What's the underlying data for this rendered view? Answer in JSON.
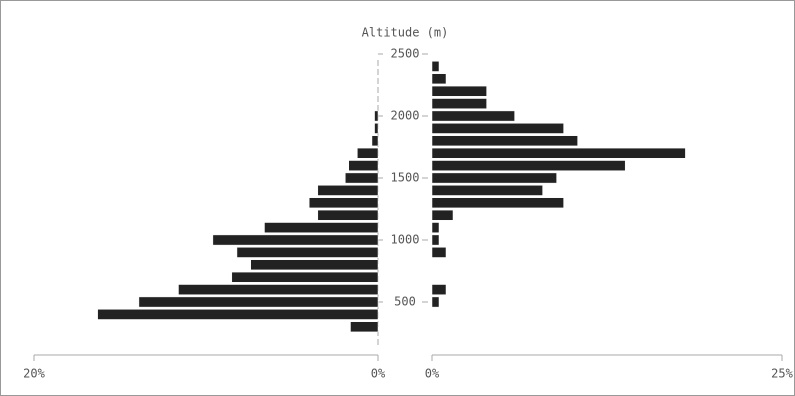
{
  "chart_data": {
    "type": "back-to-back-bar",
    "title": "Altitude (m)",
    "x": [
      300,
      400,
      500,
      600,
      700,
      800,
      900,
      1000,
      1100,
      1200,
      1300,
      1400,
      1500,
      1600,
      1700,
      1800,
      1900,
      2000,
      2100,
      2200,
      2300,
      2400
    ],
    "series": [
      {
        "color": "#222222",
        "side": "left",
        "values": [
          1.6,
          16.3,
          13.9,
          11.6,
          8.5,
          7.4,
          8.2,
          9.6,
          6.6,
          3.5,
          4.0,
          3.5,
          1.9,
          1.7,
          1.2,
          0.35,
          0.2,
          0.2,
          0,
          0,
          0,
          0
        ]
      },
      {
        "color": "#222222",
        "side": "right",
        "values": [
          0,
          0,
          0.5,
          1.0,
          0,
          0,
          1.0,
          0.5,
          0.5,
          1.5,
          9.4,
          7.9,
          8.9,
          13.8,
          18.1,
          10.4,
          9.4,
          5.9,
          3.9,
          3.9,
          1.0,
          0.5
        ]
      }
    ],
    "ylim": [
      150,
      2500
    ],
    "yticks": [
      500,
      1000,
      1500,
      2000,
      2500
    ],
    "xlim_left": [
      20,
      0
    ],
    "xticks_left": [
      {
        "value": 20,
        "label": "20%"
      },
      {
        "value": 0,
        "label": "0%"
      }
    ],
    "xlim_right": [
      0,
      25
    ],
    "xticks_right": [
      {
        "value": 0,
        "label": "0%"
      },
      {
        "value": 25,
        "label": "25%"
      }
    ]
  }
}
